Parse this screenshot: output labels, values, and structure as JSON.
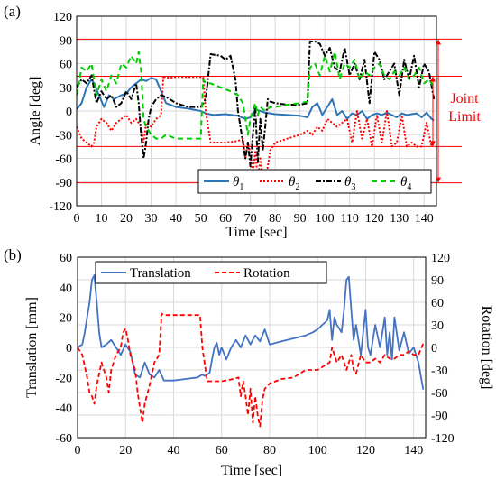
{
  "chart_data": [
    {
      "panel_label": "(a)",
      "type": "line",
      "xlabel": "Time [sec]",
      "ylabel": "Angle [deg]",
      "xlim": [
        0,
        145
      ],
      "ylim": [
        -120,
        120
      ],
      "xticks": [
        "0",
        "10",
        "20",
        "30",
        "40",
        "50",
        "60",
        "70",
        "80",
        "90",
        "100",
        "110",
        "120",
        "130",
        "140"
      ],
      "yticks": [
        "-120",
        "-90",
        "-60",
        "-30",
        "0",
        "30",
        "60",
        "90",
        "120"
      ],
      "grid": true,
      "legend_position": "bottom-right",
      "joint_limit_lines": [
        91,
        44,
        -45,
        -91
      ],
      "annotation": {
        "text": [
          "Joint",
          "Limit"
        ],
        "color": "#ff0000"
      },
      "series": [
        {
          "name": "θ1",
          "symbol": "θ",
          "subscript": "1",
          "color": "#2e75b6",
          "dash": "none",
          "x": [
            0,
            2,
            4,
            6,
            7,
            9,
            11,
            13,
            15,
            18,
            20,
            22,
            24,
            26,
            28,
            30,
            32,
            34,
            36,
            40,
            45,
            50,
            52,
            55,
            60,
            65,
            68,
            70,
            72,
            74,
            76,
            78,
            80,
            85,
            90,
            93,
            95,
            97,
            99,
            101,
            103,
            105,
            107,
            109,
            111,
            113,
            115,
            117,
            119,
            121,
            123,
            125,
            127,
            129,
            131,
            133,
            135,
            137,
            139,
            141,
            143,
            144
          ],
          "y": [
            2,
            10,
            30,
            40,
            35,
            20,
            5,
            20,
            15,
            20,
            22,
            30,
            35,
            40,
            38,
            42,
            40,
            25,
            10,
            5,
            3,
            0,
            -3,
            -5,
            -4,
            -6,
            -10,
            -8,
            2,
            0,
            -2,
            -3,
            -4,
            -5,
            -6,
            -8,
            5,
            10,
            -5,
            5,
            15,
            -5,
            0,
            -10,
            -3,
            -5,
            0,
            -10,
            -5,
            -3,
            -5,
            -2,
            -5,
            -8,
            -3,
            -5,
            -4,
            -3,
            -8,
            -2,
            -10,
            -12
          ]
        },
        {
          "name": "θ2",
          "symbol": "θ",
          "subscript": "2",
          "color": "#ff0000",
          "dash": "2,2",
          "x": [
            0,
            2,
            4,
            6,
            7,
            8,
            10,
            12,
            14,
            16,
            18,
            20,
            22,
            24,
            26,
            27,
            28,
            30,
            32,
            34,
            35,
            36,
            40,
            45,
            51,
            52,
            54,
            60,
            65,
            67,
            68,
            69,
            70,
            71,
            72,
            73,
            74,
            75,
            76,
            77,
            78,
            80,
            85,
            90,
            93,
            95,
            97,
            99,
            101,
            103,
            105,
            107,
            109,
            111,
            113,
            115,
            117,
            119,
            121,
            123,
            125,
            127,
            129,
            131,
            133,
            135,
            137,
            139,
            141,
            143,
            144
          ],
          "y": [
            -20,
            -35,
            -40,
            -45,
            -40,
            -20,
            -10,
            -15,
            -25,
            -15,
            -10,
            -5,
            -15,
            -10,
            -20,
            -40,
            -15,
            -20,
            -10,
            -5,
            45,
            42,
            43,
            43,
            43,
            0,
            -40,
            -40,
            -38,
            -35,
            -60,
            -40,
            -55,
            -80,
            -50,
            -90,
            -60,
            -85,
            -100,
            -70,
            -50,
            -40,
            -35,
            -30,
            -25,
            -30,
            -20,
            -25,
            -10,
            -15,
            -20,
            -15,
            -10,
            -40,
            0,
            -35,
            -10,
            -45,
            -5,
            -40,
            0,
            -45,
            -40,
            -5,
            -45,
            -40,
            -45,
            -45,
            -15,
            -45,
            -40
          ]
        },
        {
          "name": "θ3",
          "symbol": "θ",
          "subscript": "3",
          "color": "#000000",
          "dash": "6,2,2,2",
          "x": [
            0,
            2,
            4,
            6,
            8,
            10,
            12,
            14,
            16,
            18,
            20,
            22,
            24,
            25,
            26,
            27,
            28,
            29,
            30,
            32,
            34,
            36,
            40,
            45,
            50,
            51,
            52,
            54,
            58,
            60,
            62,
            64,
            65,
            66,
            67,
            68,
            69,
            70,
            71,
            72,
            73,
            74,
            75,
            76,
            77,
            78,
            80,
            85,
            90,
            93,
            94,
            96,
            98,
            100,
            102,
            104,
            106,
            108,
            110,
            112,
            114,
            116,
            118,
            120,
            122,
            124,
            126,
            128,
            130,
            132,
            134,
            136,
            138,
            140,
            142,
            144
          ],
          "y": [
            30,
            40,
            35,
            45,
            10,
            25,
            15,
            20,
            5,
            10,
            25,
            15,
            35,
            10,
            -30,
            -60,
            -40,
            -10,
            5,
            15,
            20,
            18,
            10,
            5,
            5,
            10,
            15,
            72,
            70,
            65,
            70,
            40,
            0,
            -20,
            -40,
            -60,
            -40,
            -70,
            -30,
            5,
            -65,
            -10,
            -50,
            -20,
            15,
            12,
            10,
            8,
            8,
            10,
            88,
            88,
            85,
            70,
            80,
            55,
            50,
            80,
            45,
            60,
            40,
            65,
            10,
            75,
            65,
            40,
            50,
            60,
            20,
            65,
            40,
            70,
            30,
            60,
            50,
            15
          ]
        },
        {
          "name": "θ4",
          "symbol": "θ",
          "subscript": "4",
          "color": "#00cc00",
          "dash": "6,4",
          "x": [
            0,
            2,
            4,
            6,
            8,
            10,
            12,
            14,
            16,
            18,
            20,
            22,
            24,
            25,
            26,
            27,
            28,
            30,
            32,
            34,
            36,
            40,
            45,
            50,
            51,
            52,
            54,
            58,
            62,
            65,
            67,
            68,
            69,
            70,
            71,
            72,
            73,
            74,
            76,
            78,
            80,
            85,
            90,
            93,
            94,
            96,
            98,
            100,
            102,
            104,
            106,
            108,
            110,
            112,
            114,
            116,
            118,
            120,
            122,
            124,
            126,
            128,
            130,
            132,
            134,
            136,
            138,
            140,
            142,
            144
          ],
          "y": [
            20,
            55,
            50,
            60,
            20,
            40,
            25,
            45,
            35,
            60,
            55,
            70,
            60,
            75,
            50,
            -10,
            -20,
            -30,
            -35,
            -35,
            -30,
            -35,
            -35,
            -35,
            40,
            35,
            35,
            30,
            25,
            20,
            10,
            -10,
            -30,
            -10,
            0,
            10,
            -5,
            5,
            0,
            5,
            5,
            8,
            10,
            12,
            55,
            60,
            45,
            70,
            50,
            75,
            40,
            60,
            55,
            65,
            40,
            50,
            45,
            55,
            60,
            45,
            40,
            50,
            45,
            55,
            40,
            45,
            55,
            35,
            40,
            30
          ]
        }
      ]
    },
    {
      "panel_label": "(b)",
      "type": "line",
      "xlabel": "Time [sec]",
      "ylabel": "Translation [mm]",
      "ylabel_right": "Rotation [deg]",
      "xlim": [
        0,
        145
      ],
      "ylim": [
        -60,
        60
      ],
      "ylim_right": [
        -120,
        120
      ],
      "xticks": [
        "0",
        "20",
        "40",
        "60",
        "80",
        "100",
        "120",
        "140"
      ],
      "yticks": [
        "-60",
        "-40",
        "-20",
        "0",
        "20",
        "40",
        "60"
      ],
      "yticks_right": [
        "-120",
        "-90",
        "-60",
        "-30",
        "0",
        "30",
        "60",
        "90",
        "120"
      ],
      "grid": true,
      "legend_position": "top",
      "series": [
        {
          "name": "Translation",
          "axis": "left",
          "color": "#4472c4",
          "dash": "none",
          "x": [
            0,
            2,
            3,
            4,
            5,
            6,
            7,
            8,
            9,
            10,
            12,
            14,
            16,
            18,
            20,
            22,
            24,
            26,
            28,
            30,
            32,
            34,
            36,
            40,
            45,
            50,
            52,
            53,
            54,
            55,
            56,
            57,
            58,
            59,
            60,
            62,
            64,
            66,
            68,
            70,
            72,
            74,
            76,
            78,
            80,
            85,
            90,
            95,
            98,
            100,
            102,
            104,
            105,
            106,
            107,
            108,
            110,
            111,
            112,
            113,
            114,
            115,
            116,
            118,
            120,
            121,
            122,
            124,
            126,
            128,
            129,
            130,
            131,
            132,
            134,
            136,
            138,
            140,
            142,
            144
          ],
          "y": [
            0,
            2,
            10,
            20,
            30,
            45,
            48,
            30,
            10,
            0,
            2,
            5,
            0,
            -5,
            2,
            -3,
            -18,
            -20,
            -10,
            -18,
            -20,
            -15,
            -22,
            -22,
            -21,
            -20,
            -18,
            -19,
            -18,
            -17,
            -8,
            0,
            3,
            -5,
            0,
            -8,
            0,
            5,
            0,
            8,
            2,
            8,
            4,
            12,
            2,
            4,
            6,
            8,
            10,
            12,
            15,
            18,
            25,
            5,
            20,
            15,
            10,
            25,
            45,
            47,
            25,
            5,
            15,
            -5,
            25,
            0,
            -5,
            15,
            0,
            20,
            -5,
            10,
            -8,
            20,
            -2,
            10,
            -4,
            0,
            -10,
            -28
          ]
        },
        {
          "name": "Rotation",
          "axis": "right",
          "color": "#ff0000",
          "dash": "5,3",
          "x": [
            0,
            2,
            4,
            5,
            6,
            7,
            8,
            10,
            12,
            13,
            14,
            16,
            18,
            19,
            20,
            21,
            22,
            24,
            25,
            26,
            27,
            28,
            30,
            32,
            34,
            35,
            36,
            40,
            45,
            51,
            52,
            54,
            60,
            65,
            67,
            68,
            69,
            70,
            71,
            72,
            73,
            74,
            75,
            76,
            77,
            78,
            80,
            85,
            90,
            95,
            100,
            105,
            106,
            108,
            110,
            112,
            114,
            115,
            116,
            118,
            120,
            122,
            124,
            126,
            128,
            130,
            132,
            134,
            136,
            138,
            140,
            142,
            144
          ],
          "y": [
            0,
            -10,
            -40,
            -60,
            -65,
            -75,
            -50,
            -20,
            -40,
            -60,
            -30,
            -10,
            0,
            20,
            25,
            10,
            -10,
            -30,
            -60,
            -80,
            -100,
            -75,
            -50,
            -20,
            -10,
            45,
            43,
            43,
            43,
            43,
            0,
            -45,
            -45,
            -42,
            -40,
            -65,
            -45,
            -65,
            -90,
            -55,
            -100,
            -65,
            -90,
            -105,
            -70,
            -55,
            -48,
            -42,
            -40,
            -30,
            -30,
            -20,
            0,
            -20,
            -10,
            -30,
            -10,
            -30,
            -35,
            -10,
            -20,
            -20,
            -15,
            -20,
            -10,
            -15,
            -15,
            -10,
            -10,
            -5,
            -10,
            -10,
            5
          ]
        }
      ]
    }
  ]
}
